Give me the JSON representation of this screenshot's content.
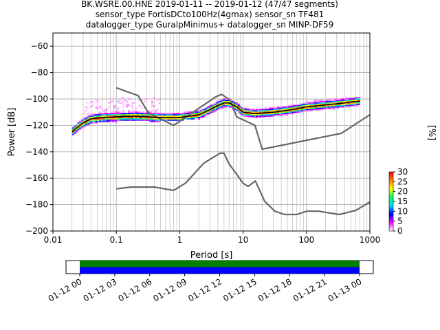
{
  "title_lines": [
    "BK.WSRE.00.HNE   2019-01-11 -- 2019-01-12  (47/47 segments)",
    "sensor_type FortisDCto100Hz(4gmax) sensor_sn TF481",
    "datalogger_type GuralpMinimus+ datalogger_sn MINP-DF59"
  ],
  "colors": {
    "nlnm_nhnm": "#666666",
    "mode_curve": "#000000",
    "coverage_data": "#0000ff",
    "coverage_gaps": "#008000",
    "grid": "#b0b0b0"
  },
  "chart_data": [
    {
      "type": "heatmap",
      "subtype": "probabilistic-power-spectral-density",
      "xlabel": "Period [s]",
      "ylabel": "Power [dB]",
      "x_scale": "log",
      "xlim": [
        0.01,
        1000
      ],
      "ylim": [
        -200,
        -50
      ],
      "x_ticks": [
        0.01,
        0.1,
        1,
        10,
        100,
        1000
      ],
      "x_tick_labels": [
        "0.01",
        "0.1",
        "1",
        "10",
        "100",
        "1000"
      ],
      "y_ticks": [
        -200,
        -180,
        -160,
        -140,
        -120,
        -100,
        -80,
        -60
      ],
      "grid": true,
      "colorbar": {
        "label": "[%]",
        "ticks": [
          0,
          5,
          10,
          15,
          20,
          25,
          30
        ],
        "range": [
          0,
          30
        ],
        "colormap": [
          "#ffffff",
          "#ff00ff",
          "#0000ff",
          "#00d8ff",
          "#00ff60",
          "#ffff00",
          "#ff8000",
          "#ff0000"
        ]
      },
      "series": [
        {
          "role": "high-noise-model",
          "x": [
            0.1,
            0.22,
            0.32,
            0.8,
            3.8,
            4.6,
            6.3,
            7.9,
            15.4,
            20,
            354.8,
            1000
          ],
          "y": [
            -91.5,
            -97.4,
            -110.5,
            -120,
            -98,
            -96.5,
            -101,
            -113.5,
            -120,
            -138,
            -126,
            -112
          ]
        },
        {
          "role": "low-noise-model",
          "x": [
            0.1,
            0.17,
            0.4,
            0.8,
            1.24,
            2.4,
            4.3,
            5,
            6,
            10,
            12,
            15.6,
            21.9,
            31.6,
            45,
            70,
            101,
            154,
            328,
            600,
            1000
          ],
          "y": [
            -168,
            -166.7,
            -166.7,
            -169.2,
            -163.7,
            -148.6,
            -141.1,
            -141.1,
            -149,
            -163.8,
            -166.2,
            -162.1,
            -177.5,
            -185,
            -187.5,
            -187.5,
            -185,
            -185,
            -187.5,
            -184.4,
            -178
          ]
        },
        {
          "role": "mode",
          "x": [
            0.02,
            0.025,
            0.03,
            0.04,
            0.06,
            0.1,
            0.2,
            0.5,
            1,
            2,
            3,
            4,
            5,
            6,
            8,
            10,
            15,
            30,
            60,
            100,
            200,
            400,
            700
          ],
          "y": [
            -125,
            -121,
            -118,
            -115,
            -114,
            -113.5,
            -113,
            -114,
            -114,
            -112,
            -108,
            -105,
            -103,
            -103,
            -106,
            -110,
            -111,
            -110,
            -108,
            -106,
            -104.5,
            -103,
            -101.5
          ]
        }
      ]
    },
    {
      "type": "bar",
      "subtype": "data-coverage-timeline",
      "x_tick_labels": [
        "01-12 00",
        "01-12 03",
        "01-12 06",
        "01-12 09",
        "01-12 12",
        "01-12 15",
        "01-12 18",
        "01-12 21",
        "01-13 00"
      ],
      "segments": [
        {
          "role": "coverage",
          "start": "01-12 00",
          "end": "01-13 00"
        }
      ]
    }
  ]
}
